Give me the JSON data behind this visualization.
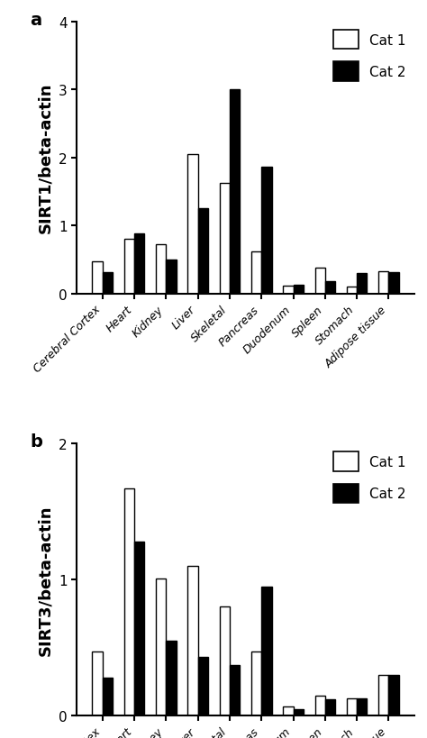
{
  "categories": [
    "Cerebral Cortex",
    "Heart",
    "Kidney",
    "Liver",
    "Skeletal",
    "Pancreas",
    "Duodenum",
    "Spleen",
    "Stomach",
    "Adipose tissue"
  ],
  "sirt1_cat1": [
    0.48,
    0.8,
    0.73,
    2.05,
    1.62,
    0.62,
    0.12,
    0.38,
    0.1,
    0.33
  ],
  "sirt1_cat2": [
    0.32,
    0.88,
    0.5,
    1.25,
    3.0,
    1.87,
    0.13,
    0.18,
    0.3,
    0.32
  ],
  "sirt3_cat1": [
    0.47,
    1.67,
    1.01,
    1.1,
    0.8,
    0.47,
    0.07,
    0.15,
    0.13,
    0.3
  ],
  "sirt3_cat2": [
    0.28,
    1.28,
    0.55,
    0.43,
    0.37,
    0.95,
    0.05,
    0.12,
    0.13,
    0.3
  ],
  "sirt1_ylim": [
    0,
    4
  ],
  "sirt1_yticks": [
    0,
    1,
    2,
    3,
    4
  ],
  "sirt3_ylim": [
    0,
    2
  ],
  "sirt3_yticks": [
    0,
    1,
    2
  ],
  "ylabel_sirt1": "SIRT1/beta-actin",
  "ylabel_sirt3": "SIRT3/beta-actin",
  "cat1_color": "#ffffff",
  "cat2_color": "#000000",
  "bar_edgecolor": "#000000",
  "panel_a_label": "a",
  "panel_b_label": "b",
  "legend_cat1": "Cat 1",
  "legend_cat2": "Cat 2",
  "bar_width": 0.32,
  "figsize": [
    4.74,
    8.2
  ],
  "dpi": 100,
  "ylabel_fontsize": 13,
  "tick_fontsize": 9,
  "legend_fontsize": 11,
  "panel_label_fontsize": 14,
  "spine_linewidth": 1.5,
  "bar_linewidth": 1.0
}
